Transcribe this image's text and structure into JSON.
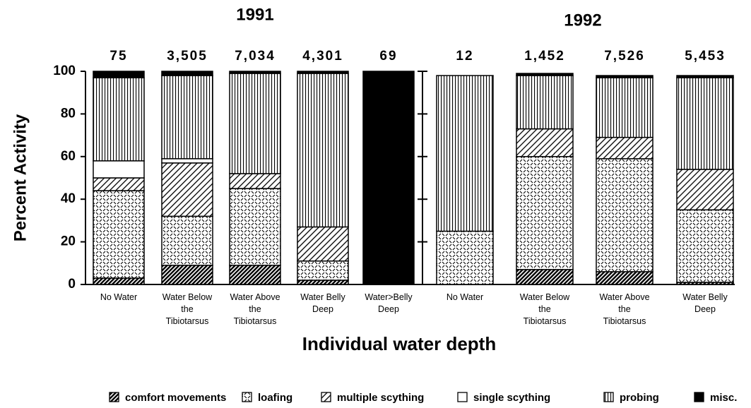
{
  "chart_data": {
    "type": "bar",
    "stacked": true,
    "ylabel": "Percent Activity",
    "xlabel": "Individual water depth",
    "ylim": [
      0,
      100
    ],
    "yticks": [
      0,
      20,
      40,
      60,
      80,
      100
    ],
    "groups": [
      {
        "title": "1991",
        "categories": [
          "No Water",
          "Water Below\nthe\nTibiotarsus",
          "Water Above\nthe\nTibiotarsus",
          "Water Belly\nDeep",
          "Water>Belly\nDeep"
        ],
        "n_labels": [
          "75",
          "3,505",
          "7,034",
          "4,301",
          "69"
        ]
      },
      {
        "title": "1992",
        "categories": [
          "No Water",
          "Water Below\nthe\nTibiotarsus",
          "Water Above\nthe\nTibiotarsus",
          "Water Belly\nDeep"
        ],
        "n_labels": [
          "12",
          "1,452",
          "7,526",
          "5,453"
        ]
      }
    ],
    "series": [
      {
        "name": "comfort movements",
        "pattern": "dense-hatch",
        "values": [
          3,
          9,
          9,
          2,
          0,
          0,
          7,
          6,
          1
        ]
      },
      {
        "name": "loafing",
        "pattern": "dash-lattice",
        "values": [
          41,
          23,
          36,
          9,
          0,
          25,
          53,
          53,
          34
        ]
      },
      {
        "name": "multiple scything",
        "pattern": "hatch",
        "values": [
          6,
          25,
          7,
          16,
          0,
          0,
          13,
          10,
          19
        ]
      },
      {
        "name": "single scything",
        "pattern": "white",
        "values": [
          8,
          2,
          0,
          0,
          0,
          0,
          0,
          0,
          0
        ]
      },
      {
        "name": "probing",
        "pattern": "vertical",
        "values": [
          39,
          39,
          47,
          72,
          0,
          73,
          25,
          28,
          43
        ]
      },
      {
        "name": "misc.",
        "pattern": "solid",
        "values": [
          3,
          2,
          1,
          1,
          100,
          0,
          1,
          1,
          1
        ]
      }
    ]
  }
}
